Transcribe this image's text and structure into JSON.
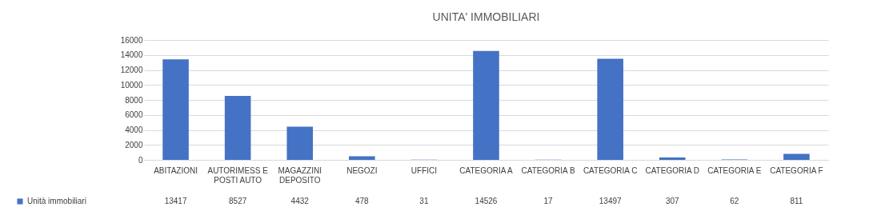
{
  "chart_data": {
    "type": "bar",
    "title": "UNITA' IMMOBILIARI",
    "categories": [
      "ABITAZIONI",
      "AUTORIMESS E POSTI AUTO",
      "MAGAZZINI DEPOSITO",
      "NEGOZI",
      "UFFICI",
      "CATEGORIA A",
      "CATEGORIA B",
      "CATEGORIA C",
      "CATEGORIA D",
      "CATEGORIA E",
      "CATEGORIA F"
    ],
    "series": [
      {
        "name": "Unità immobiliari",
        "color": "#4472c4",
        "values": [
          13417,
          8527,
          4432,
          478,
          31,
          14526,
          17,
          13497,
          307,
          62,
          811
        ]
      }
    ],
    "ylim": [
      0,
      16000
    ],
    "yticks": [
      0,
      2000,
      4000,
      6000,
      8000,
      10000,
      12000,
      14000,
      16000
    ],
    "grid": "y",
    "legend": "bottom left",
    "data_labels": true
  }
}
